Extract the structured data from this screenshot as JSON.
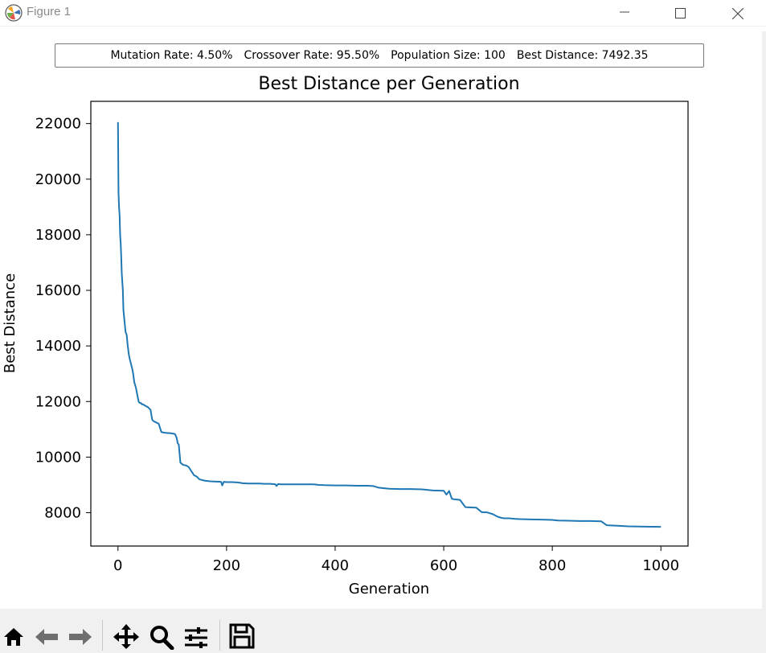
{
  "window": {
    "title": "Figure 1",
    "icons": [
      "matplotlib-logo-icon",
      "minimize-icon",
      "maximize-icon",
      "close-icon"
    ]
  },
  "info": {
    "mutation_rate": "Mutation Rate: 4.50%",
    "crossover_rate": "Crossover Rate: 95.50%",
    "population_size": "Population Size: 100",
    "best_distance": "Best Distance: 7492.35"
  },
  "colors": {
    "line": "#1f77b4",
    "toolbar_bg": "#f0f0f0"
  },
  "toolbar": {
    "icons": [
      "home-icon",
      "back-icon",
      "forward-icon",
      "pan-icon",
      "zoom-icon",
      "configure-subplots-icon",
      "save-icon"
    ]
  },
  "chart_data": {
    "type": "line",
    "title": "Best Distance per Generation",
    "xlabel": "Generation",
    "ylabel": "Best Distance",
    "xlim": [
      -50,
      1050
    ],
    "ylim": [
      6800,
      22800
    ],
    "xticks": [
      0,
      200,
      400,
      600,
      800,
      1000
    ],
    "yticks": [
      8000,
      10000,
      12000,
      14000,
      16000,
      18000,
      20000,
      22000
    ],
    "grid": false,
    "series": [
      {
        "x": [
          0,
          1,
          2,
          3,
          4,
          5,
          6,
          7,
          8,
          9,
          10,
          12,
          14,
          16,
          18,
          20,
          22,
          24,
          26,
          28,
          30,
          33,
          36,
          38,
          40,
          42,
          44,
          46,
          50,
          55,
          60,
          63,
          65,
          70,
          75,
          80,
          85,
          90,
          95,
          100,
          105,
          108,
          110,
          112,
          115,
          120,
          125,
          130,
          135,
          140,
          145,
          150,
          160,
          170,
          180,
          190,
          192,
          195,
          200,
          210,
          220,
          230,
          240,
          250,
          260,
          270,
          280,
          285,
          290,
          292,
          295,
          300,
          320,
          340,
          360,
          370,
          380,
          400,
          420,
          440,
          460,
          470,
          480,
          490,
          500,
          520,
          540,
          560,
          580,
          600,
          605,
          610,
          615,
          620,
          630,
          640,
          650,
          660,
          670,
          680,
          690,
          700,
          705,
          710,
          720,
          730,
          740,
          760,
          780,
          800,
          810,
          830,
          850,
          870,
          890,
          900,
          920,
          940,
          960,
          980,
          1000
        ],
        "y": [
          22050,
          19500,
          19000,
          18700,
          18000,
          17700,
          17200,
          16600,
          16300,
          16000,
          15300,
          14900,
          14500,
          14400,
          14000,
          13700,
          13500,
          13350,
          13200,
          13000,
          12700,
          12500,
          12200,
          12000,
          11950,
          11950,
          11900,
          11900,
          11850,
          11800,
          11700,
          11350,
          11300,
          11250,
          11200,
          10900,
          10880,
          10870,
          10860,
          10850,
          10830,
          10700,
          10500,
          10450,
          9800,
          9720,
          9700,
          9650,
          9500,
          9350,
          9300,
          9200,
          9150,
          9130,
          9120,
          9110,
          8980,
          9110,
          9100,
          9100,
          9090,
          9060,
          9050,
          9050,
          9050,
          9040,
          9040,
          9030,
          9020,
          8960,
          9030,
          9020,
          9020,
          9020,
          9020,
          9000,
          8990,
          8980,
          8980,
          8970,
          8970,
          8960,
          8900,
          8880,
          8860,
          8850,
          8850,
          8840,
          8800,
          8790,
          8650,
          8780,
          8500,
          8480,
          8460,
          8200,
          8190,
          8180,
          8020,
          8010,
          7950,
          7850,
          7820,
          7800,
          7800,
          7780,
          7770,
          7760,
          7750,
          7740,
          7720,
          7710,
          7700,
          7700,
          7690,
          7550,
          7530,
          7510,
          7500,
          7495,
          7492.35
        ]
      }
    ]
  }
}
